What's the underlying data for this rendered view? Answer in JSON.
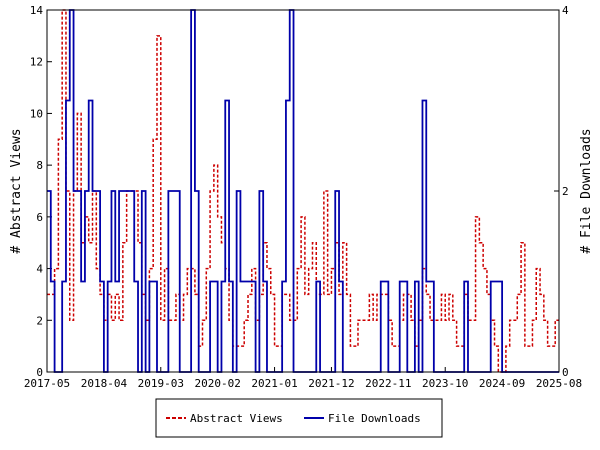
{
  "chart_data": {
    "type": "line",
    "x_tick_labels": [
      "2017-05",
      "2018-04",
      "2019-03",
      "2020-02",
      "2021-01",
      "2021-12",
      "2022-11",
      "2023-10",
      "2024-09",
      "2025-08"
    ],
    "y_left_label": "# Abstract Views",
    "y_right_label": "# File Downloads",
    "y_left_range": [
      0,
      14
    ],
    "y_left_ticks": [
      0,
      2,
      4,
      6,
      8,
      10,
      12,
      14
    ],
    "y_right_range": [
      0,
      4
    ],
    "y_right_ticks": [
      0,
      2,
      4
    ],
    "legend_position": "bottom",
    "series": [
      {
        "name": "Abstract Views",
        "color": "#cc0000",
        "style": "dashed",
        "axis": "left",
        "values": [
          3,
          3,
          4,
          9,
          14,
          7,
          2,
          7,
          10,
          5,
          6,
          5,
          7,
          4,
          3,
          2,
          3,
          2,
          3,
          2,
          5,
          7,
          7,
          7,
          5,
          3,
          2,
          4,
          9,
          13,
          2,
          4,
          2,
          2,
          3,
          2,
          3,
          4,
          4,
          3,
          1,
          2,
          4,
          7,
          8,
          6,
          5,
          4,
          2,
          1,
          1,
          1,
          2,
          3,
          4,
          2,
          3,
          5,
          4,
          3,
          1,
          1,
          3,
          3,
          2,
          2,
          4,
          6,
          3,
          4,
          5,
          3,
          3,
          7,
          3,
          4,
          5,
          3,
          5,
          3,
          1,
          1,
          2,
          2,
          2,
          3,
          2,
          3,
          3,
          3,
          2,
          1,
          1,
          2,
          3,
          3,
          2,
          1,
          2,
          4,
          3,
          2,
          2,
          2,
          3,
          2,
          3,
          2,
          1,
          1,
          3,
          2,
          2,
          6,
          5,
          4,
          3,
          2,
          1,
          0,
          0,
          1,
          2,
          2,
          3,
          5,
          1,
          1,
          2,
          4,
          3,
          2,
          1,
          1,
          2
        ]
      },
      {
        "name": "File Downloads",
        "color": "#0000aa",
        "style": "solid",
        "axis": "right",
        "values": [
          2,
          1,
          0,
          0,
          1,
          3,
          4,
          2,
          2,
          1,
          2,
          3,
          2,
          2,
          1,
          0,
          1,
          2,
          1,
          2,
          2,
          2,
          2,
          1,
          0,
          2,
          0,
          1,
          1,
          0,
          0,
          0,
          2,
          2,
          2,
          0,
          0,
          0,
          4,
          2,
          0,
          0,
          0,
          1,
          1,
          0,
          1,
          3,
          1,
          0,
          2,
          1,
          1,
          1,
          1,
          0,
          2,
          1,
          0,
          0,
          0,
          0,
          1,
          3,
          4,
          0,
          0,
          0,
          0,
          0,
          0,
          1,
          0,
          0,
          0,
          0,
          2,
          1,
          0,
          0,
          0,
          0,
          0,
          0,
          0,
          0,
          0,
          0,
          1,
          1,
          0,
          0,
          0,
          1,
          1,
          0,
          0,
          1,
          0,
          3,
          1,
          1,
          0,
          0,
          0,
          0,
          0,
          0,
          0,
          0,
          1,
          0,
          0,
          0,
          0,
          0,
          0,
          1,
          1,
          1,
          0,
          0,
          0,
          0,
          0,
          0,
          0,
          0,
          0,
          0,
          0,
          0,
          0,
          0,
          0
        ]
      }
    ]
  }
}
